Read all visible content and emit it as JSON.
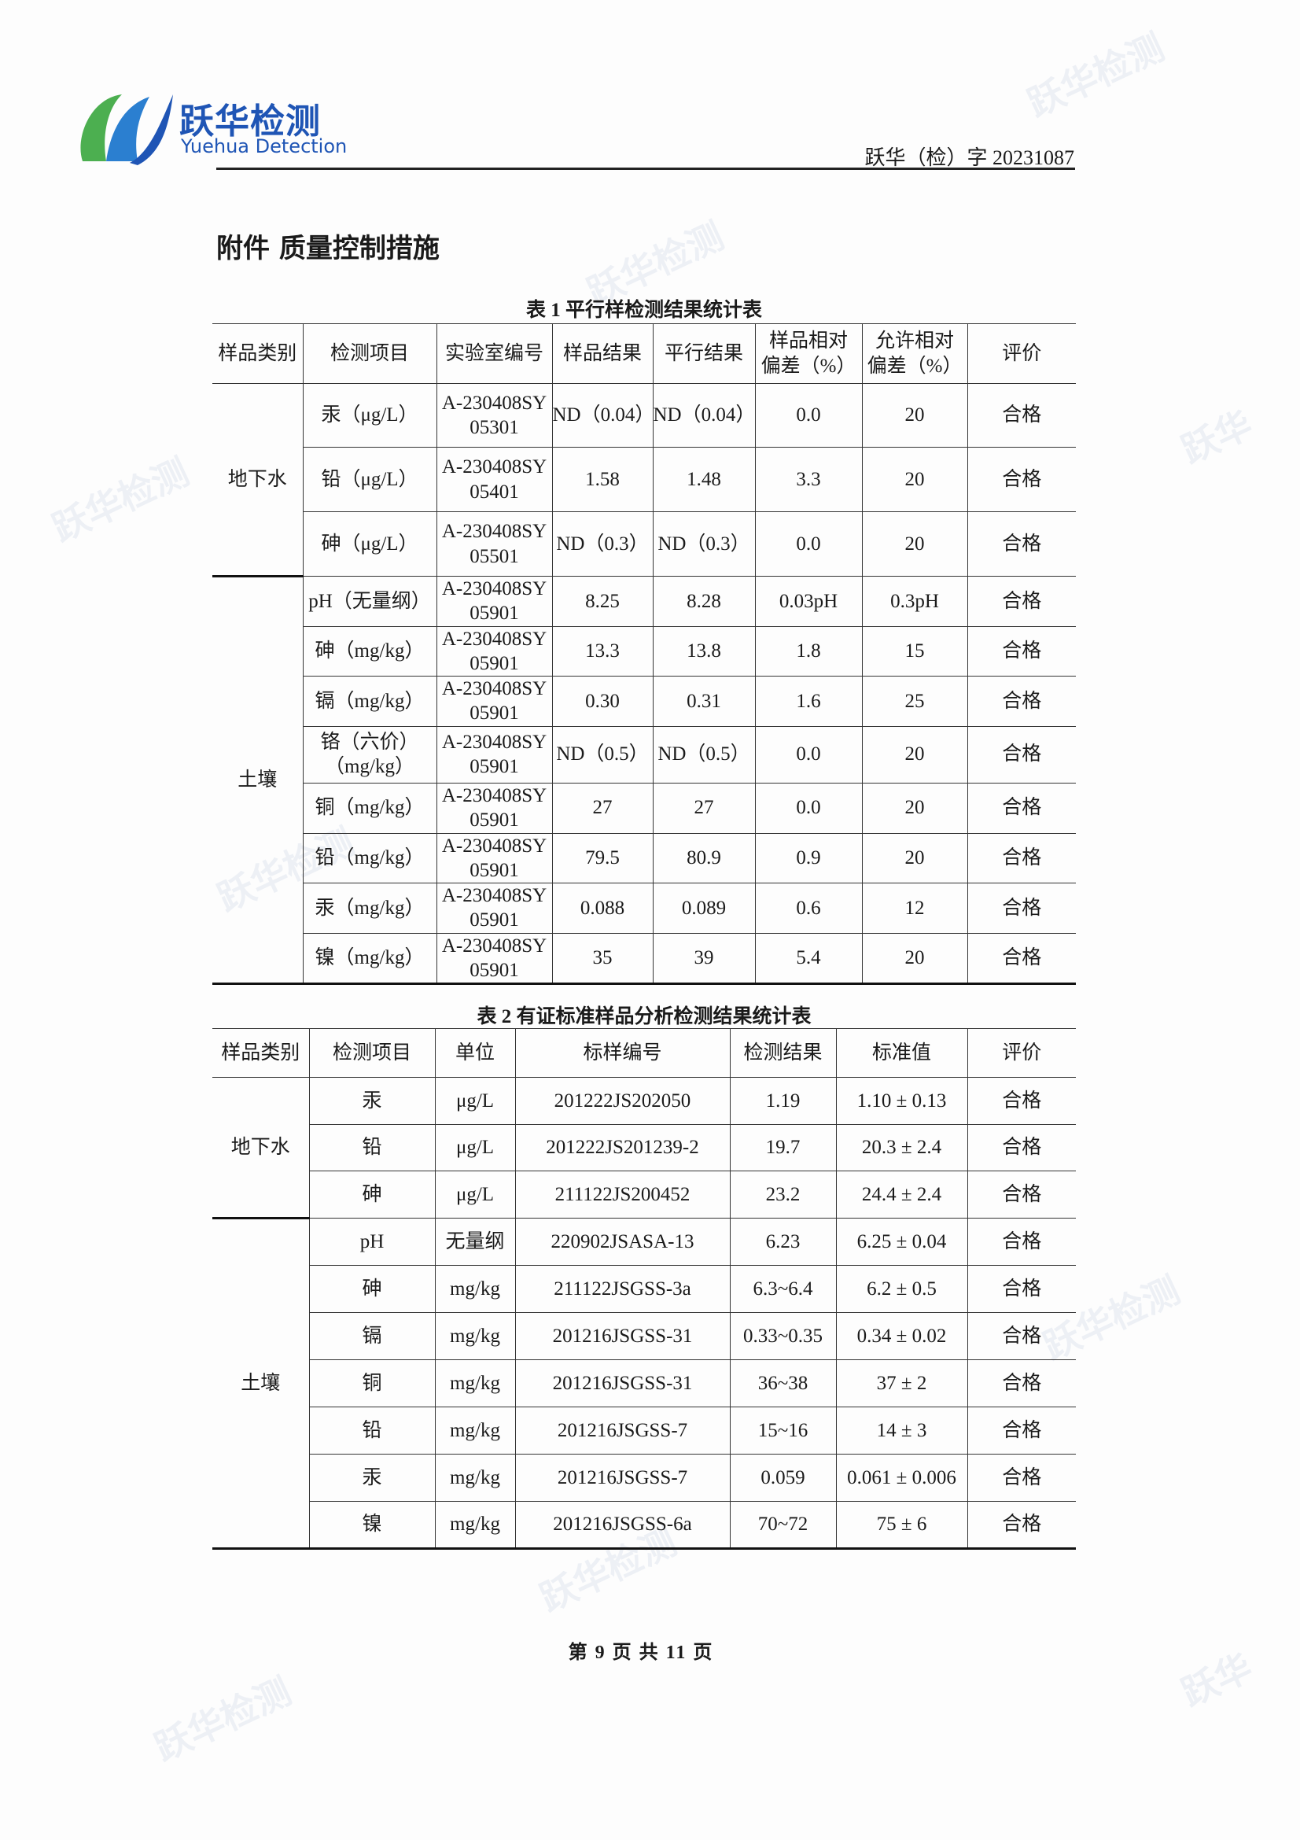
{
  "header": {
    "logo_cn": "跃华检测",
    "logo_en": "Yuehua Detection",
    "doc_number": "跃华（检）字 20231087",
    "brand_colors": {
      "blue": "#1f55b5",
      "green": "#4caf50"
    }
  },
  "title": "附件  质量控制措施",
  "table1": {
    "caption": "表 1  平行样检测结果统计表",
    "headers": [
      "样品类别",
      "检测项目",
      "实验室编号",
      "样品结果",
      "平行结果",
      "样品相对\n偏差（%）",
      "允许相对\n偏差（%）",
      "评价"
    ],
    "groups": [
      {
        "category": "地下水",
        "rows": [
          [
            "汞（μg/L）",
            "A-230408SY\n05301",
            "ND（0.04）",
            "ND（0.04）",
            "0.0",
            "20",
            "合格"
          ],
          [
            "铅（μg/L）",
            "A-230408SY\n05401",
            "1.58",
            "1.48",
            "3.3",
            "20",
            "合格"
          ],
          [
            "砷（μg/L）",
            "A-230408SY\n05501",
            "ND（0.3）",
            "ND（0.3）",
            "0.0",
            "20",
            "合格"
          ]
        ]
      },
      {
        "category": "土壤",
        "rows": [
          [
            "pH（无量纲）",
            "A-230408SY\n05901",
            "8.25",
            "8.28",
            "0.03pH",
            "0.3pH",
            "合格"
          ],
          [
            "砷（mg/kg）",
            "A-230408SY\n05901",
            "13.3",
            "13.8",
            "1.8",
            "15",
            "合格"
          ],
          [
            "镉（mg/kg）",
            "A-230408SY\n05901",
            "0.30",
            "0.31",
            "1.6",
            "25",
            "合格"
          ],
          [
            "铬（六价）\n（mg/kg）",
            "A-230408SY\n05901",
            "ND（0.5）",
            "ND（0.5）",
            "0.0",
            "20",
            "合格"
          ],
          [
            "铜（mg/kg）",
            "A-230408SY\n05901",
            "27",
            "27",
            "0.0",
            "20",
            "合格"
          ],
          [
            "铅（mg/kg）",
            "A-230408SY\n05901",
            "79.5",
            "80.9",
            "0.9",
            "20",
            "合格"
          ],
          [
            "汞（mg/kg）",
            "A-230408SY\n05901",
            "0.088",
            "0.089",
            "0.6",
            "12",
            "合格"
          ],
          [
            "镍（mg/kg）",
            "A-230408SY\n05901",
            "35",
            "39",
            "5.4",
            "20",
            "合格"
          ]
        ]
      }
    ]
  },
  "table2": {
    "caption": "表 2  有证标准样品分析检测结果统计表",
    "headers": [
      "样品类别",
      "检测项目",
      "单位",
      "标样编号",
      "检测结果",
      "标准值",
      "评价"
    ],
    "groups": [
      {
        "category": "地下水",
        "rows": [
          [
            "汞",
            "μg/L",
            "201222JS202050",
            "1.19",
            "1.10 ± 0.13",
            "合格"
          ],
          [
            "铅",
            "μg/L",
            "201222JS201239-2",
            "19.7",
            "20.3 ± 2.4",
            "合格"
          ],
          [
            "砷",
            "μg/L",
            "211122JS200452",
            "23.2",
            "24.4 ± 2.4",
            "合格"
          ]
        ]
      },
      {
        "category": "土壤",
        "rows": [
          [
            "pH",
            "无量纲",
            "220902JSASA-13",
            "6.23",
            "6.25 ± 0.04",
            "合格"
          ],
          [
            "砷",
            "mg/kg",
            "211122JSGSS-3a",
            "6.3~6.4",
            "6.2 ± 0.5",
            "合格"
          ],
          [
            "镉",
            "mg/kg",
            "201216JSGSS-31",
            "0.33~0.35",
            "0.34 ± 0.02",
            "合格"
          ],
          [
            "铜",
            "mg/kg",
            "201216JSGSS-31",
            "36~38",
            "37 ± 2",
            "合格"
          ],
          [
            "铅",
            "mg/kg",
            "201216JSGSS-7",
            "15~16",
            "14 ± 3",
            "合格"
          ],
          [
            "汞",
            "mg/kg",
            "201216JSGSS-7",
            "0.059",
            "0.061 ± 0.006",
            "合格"
          ],
          [
            "镍",
            "mg/kg",
            "201216JSGSS-6a",
            "70~72",
            "75 ± 6",
            "合格"
          ]
        ]
      }
    ]
  },
  "footer": "第 9 页 共 11 页"
}
